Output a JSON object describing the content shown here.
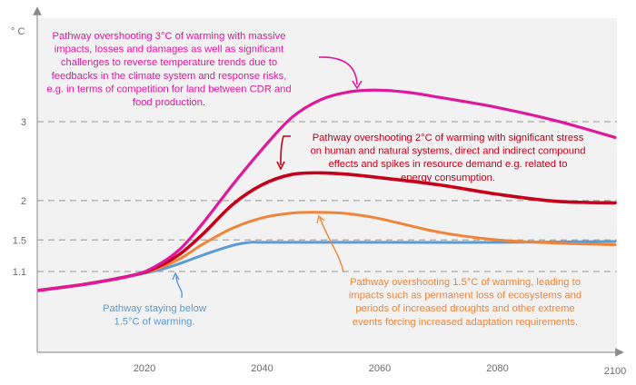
{
  "chart_data": {
    "type": "line",
    "title": "",
    "xlabel": "",
    "ylabel": "° C",
    "xlim": [
      2002,
      2100
    ],
    "ylim": [
      0.8,
      4.1
    ],
    "x_ticks": [
      {
        "value": 2020,
        "label": "2020"
      },
      {
        "value": 2040,
        "label": "2040"
      },
      {
        "value": 2060,
        "label": "2060"
      },
      {
        "value": 2080,
        "label": "2080"
      },
      {
        "value": 2100,
        "label": "2100"
      }
    ],
    "y_ticks": [
      {
        "value": 1.1,
        "label": "1.1"
      },
      {
        "value": 1.5,
        "label": "1.5"
      },
      {
        "value": 2,
        "label": "2"
      },
      {
        "value": 3,
        "label": "3"
      }
    ],
    "gridlines": "dashed horizontal at y ticks",
    "background": "#f2f2f2",
    "series": [
      {
        "name": "Pathway overshooting 3°C",
        "color": "#e0189c",
        "x": [
          2002,
          2010,
          2018,
          2022,
          2026,
          2030,
          2035,
          2040,
          2045,
          2050,
          2055,
          2060,
          2065,
          2070,
          2080,
          2090,
          2100
        ],
        "y": [
          0.86,
          0.94,
          1.05,
          1.17,
          1.38,
          1.72,
          2.2,
          2.65,
          3.05,
          3.28,
          3.38,
          3.4,
          3.37,
          3.31,
          3.18,
          3.01,
          2.8
        ]
      },
      {
        "name": "Pathway overshooting 2°C",
        "color": "#c4001a",
        "x": [
          2002,
          2010,
          2018,
          2022,
          2026,
          2030,
          2035,
          2040,
          2045,
          2050,
          2055,
          2060,
          2070,
          2080,
          2090,
          2100
        ],
        "y": [
          0.86,
          0.94,
          1.05,
          1.15,
          1.32,
          1.58,
          1.95,
          2.2,
          2.33,
          2.35,
          2.33,
          2.29,
          2.2,
          2.08,
          1.99,
          1.97
        ]
      },
      {
        "name": "Pathway overshooting 1.5°C",
        "color": "#f0853a",
        "x": [
          2002,
          2010,
          2018,
          2022,
          2026,
          2030,
          2035,
          2040,
          2045,
          2050,
          2055,
          2060,
          2070,
          2080,
          2090,
          2100
        ],
        "y": [
          0.86,
          0.94,
          1.05,
          1.13,
          1.26,
          1.45,
          1.65,
          1.78,
          1.84,
          1.85,
          1.83,
          1.77,
          1.6,
          1.5,
          1.46,
          1.44
        ]
      },
      {
        "name": "Pathway staying below 1.5°C",
        "color": "#5b9bd5",
        "x": [
          2002,
          2010,
          2018,
          2022,
          2026,
          2030,
          2035,
          2038,
          2040,
          2050,
          2060,
          2080,
          2100
        ],
        "y": [
          0.86,
          0.94,
          1.05,
          1.11,
          1.2,
          1.31,
          1.43,
          1.47,
          1.47,
          1.47,
          1.47,
          1.47,
          1.48
        ]
      }
    ],
    "annotations": [
      {
        "id": "ann-3c",
        "color": "#e0189c",
        "lines": [
          "Pathway overshooting 3°C of warming with massive",
          "impacts, losses and damages as well as significant",
          "challenges to reverse temperature trends due to",
          "feedbacks in the climate system and response risks,",
          "e.g. in terms of competition for land between CDR and",
          "food production."
        ]
      },
      {
        "id": "ann-2c",
        "color": "#c4001a",
        "lines": [
          "Pathway overshooting 2°C of warming with significant stress",
          "on human and natural systems, direct and indirect compound",
          "effects and spikes in resource demand e.g. related to",
          "energy consumption."
        ]
      },
      {
        "id": "ann-15c",
        "color": "#f0853a",
        "lines": [
          "Pathway overshooting 1.5°C of warming, leading to",
          "impacts such as permanent loss of ecosystems and",
          "periods of increased droughts and other extreme",
          "events forcing increased adaptation requirements."
        ]
      },
      {
        "id": "ann-below15",
        "color": "#5b9bd5",
        "lines": [
          "Pathway staying below",
          "1.5°C of warming."
        ]
      }
    ]
  }
}
